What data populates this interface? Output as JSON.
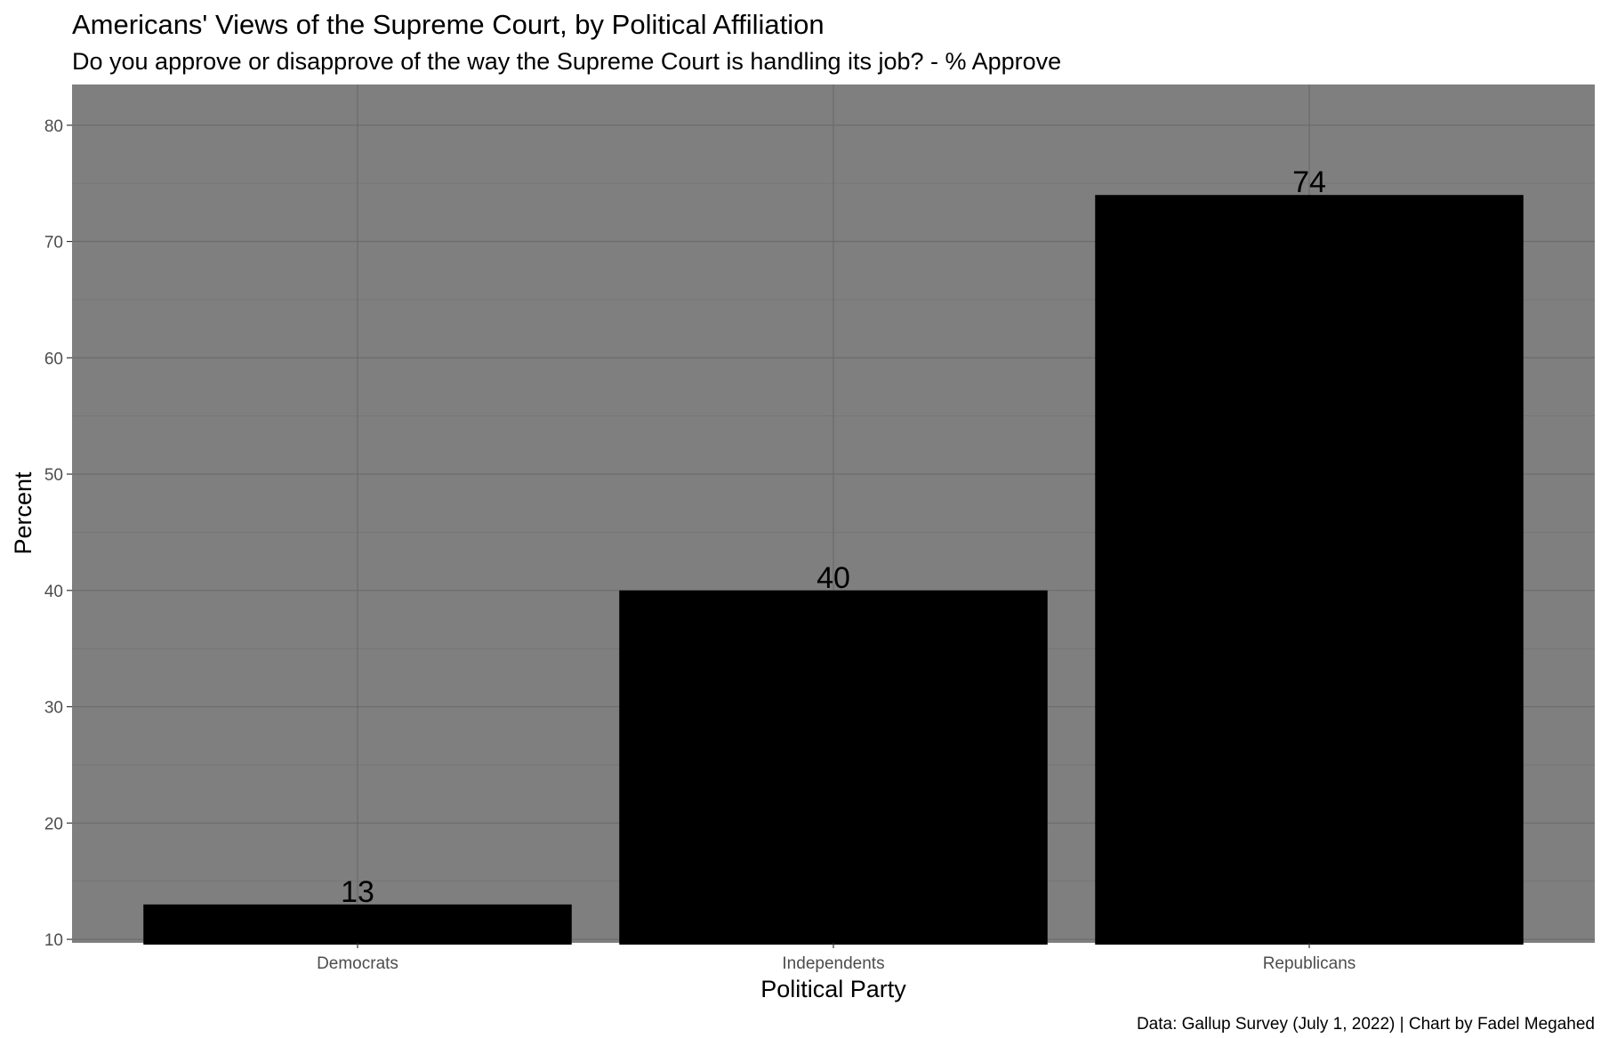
{
  "chart_data": {
    "type": "bar",
    "title": "Americans' Views of the Supreme Court, by Political Affiliation",
    "subtitle": "Do you approve or disapprove of the way the Supreme Court is handling its job? - % Approve",
    "xlabel": "Political Party",
    "ylabel": "Percent",
    "categories": [
      "Democrats",
      "Independents",
      "Republicans"
    ],
    "values": [
      13,
      40,
      74
    ],
    "data_labels": [
      "13",
      "40",
      "74"
    ],
    "ylim": [
      9.7,
      83.5
    ],
    "yticks": [
      10,
      20,
      30,
      40,
      50,
      60,
      70,
      80
    ],
    "ytick_labels": [
      "10",
      "20",
      "30",
      "40",
      "50",
      "60",
      "70",
      "80"
    ],
    "grid": true,
    "legend": "none",
    "caption": "Data: Gallup Survey (July 1, 2022) | Chart by Fadel Megahed",
    "colors": {
      "panel_background": "#7f7f7f",
      "bar_fill": "#000000",
      "grid_major": "#6b6b6b",
      "grid_minor": "#747474",
      "tick_label": "#4d4d4d"
    }
  }
}
